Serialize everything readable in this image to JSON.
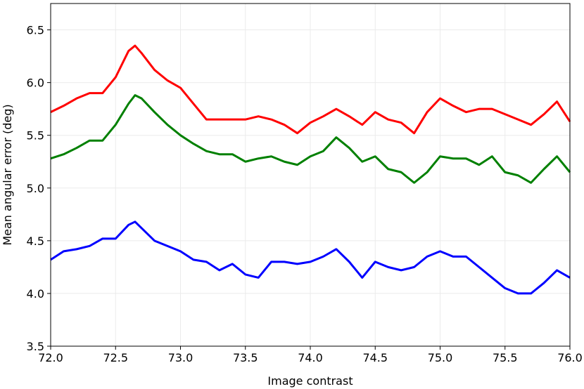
{
  "chart_data": {
    "type": "line",
    "x_label": "Image contrast",
    "y_label": "Mean angular error (deg)",
    "x": [
      72.0,
      72.1,
      72.2,
      72.3,
      72.4,
      72.5,
      72.6,
      72.65,
      72.7,
      72.8,
      72.9,
      73.0,
      73.1,
      73.2,
      73.3,
      73.4,
      73.5,
      73.6,
      73.7,
      73.8,
      73.9,
      74.0,
      74.1,
      74.2,
      74.3,
      74.4,
      74.5,
      74.6,
      74.7,
      74.8,
      74.9,
      75.0,
      75.1,
      75.2,
      75.3,
      75.4,
      75.5,
      75.6,
      75.7,
      75.8,
      75.9,
      76.0
    ],
    "series": [
      {
        "color": "#ff0000",
        "values": [
          5.72,
          5.78,
          5.85,
          5.9,
          5.9,
          6.05,
          6.3,
          6.35,
          6.28,
          6.12,
          6.02,
          5.95,
          5.8,
          5.65,
          5.65,
          5.65,
          5.65,
          5.68,
          5.65,
          5.6,
          5.52,
          5.62,
          5.68,
          5.75,
          5.68,
          5.6,
          5.72,
          5.65,
          5.62,
          5.52,
          5.72,
          5.85,
          5.78,
          5.72,
          5.75,
          5.75,
          5.7,
          5.65,
          5.6,
          5.7,
          5.82,
          5.63
        ]
      },
      {
        "color": "#008000",
        "values": [
          5.28,
          5.32,
          5.38,
          5.45,
          5.45,
          5.6,
          5.8,
          5.88,
          5.85,
          5.72,
          5.6,
          5.5,
          5.42,
          5.35,
          5.32,
          5.32,
          5.25,
          5.28,
          5.3,
          5.25,
          5.22,
          5.3,
          5.35,
          5.48,
          5.38,
          5.25,
          5.3,
          5.18,
          5.15,
          5.05,
          5.15,
          5.3,
          5.28,
          5.28,
          5.22,
          5.3,
          5.15,
          5.12,
          5.05,
          5.18,
          5.3,
          5.15
        ]
      },
      {
        "color": "#0000ff",
        "values": [
          4.32,
          4.4,
          4.42,
          4.45,
          4.52,
          4.52,
          4.65,
          4.68,
          4.62,
          4.5,
          4.45,
          4.4,
          4.32,
          4.3,
          4.22,
          4.28,
          4.18,
          4.15,
          4.3,
          4.3,
          4.28,
          4.3,
          4.35,
          4.42,
          4.3,
          4.15,
          4.3,
          4.25,
          4.22,
          4.25,
          4.35,
          4.4,
          4.35,
          4.35,
          4.25,
          4.15,
          4.05,
          4.0,
          4.0,
          4.1,
          4.22,
          4.15
        ]
      }
    ],
    "xlim": [
      72.0,
      76.0
    ],
    "xticks": [
      {
        "value": 72,
        "label": "72.0"
      },
      72.5,
      {
        "value": 73,
        "label": "73.0"
      },
      73.5,
      {
        "value": 74,
        "label": "74.0"
      },
      74.5,
      {
        "value": 75,
        "label": "75.0"
      },
      75.5,
      {
        "value": 76,
        "label": "76.0"
      }
    ],
    "ylim": [
      3.5,
      6.75
    ],
    "yticks": [
      3.5,
      {
        "value": 4,
        "label": "4.0"
      },
      4.5,
      {
        "value": 5,
        "label": "5.0"
      },
      5.5,
      {
        "value": 6,
        "label": "6.0"
      },
      6.5
    ],
    "grid": true
  }
}
